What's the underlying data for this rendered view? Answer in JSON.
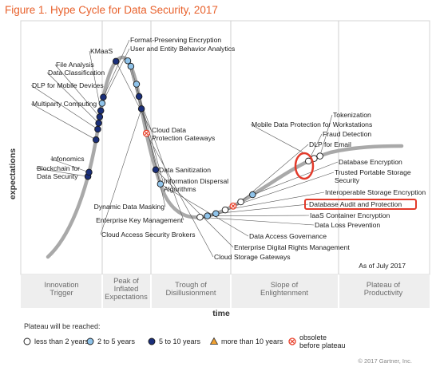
{
  "chart_data": {
    "type": "scatter",
    "title": "Figure 1. Hype Cycle for Data Security, 2017",
    "xlabel": "time",
    "ylabel": "expectations",
    "as_of": "As of July 2017",
    "copyright": "© 2017 Gartner, Inc.",
    "phases": [
      {
        "label": "Innovation Trigger"
      },
      {
        "label": "Peak of Inflated Expectations"
      },
      {
        "label": "Trough of Disillusionment"
      },
      {
        "label": "Slope of Enlightenment"
      },
      {
        "label": "Plateau of Productivity"
      }
    ],
    "legend": {
      "title": "Plateau will be reached:",
      "items": [
        {
          "key": "lt2",
          "label": "less than 2 years",
          "color": "#ffffff"
        },
        {
          "key": "2to5",
          "label": "2 to 5 years",
          "color": "#8fc3ea"
        },
        {
          "key": "5to10",
          "label": "5 to 10 years",
          "color": "#1a2f7a"
        },
        {
          "key": "gt10",
          "label": "more than 10 years",
          "color": "#f0a030"
        },
        {
          "key": "obsolete",
          "label": "obsolete before plateau",
          "color": "#e8402a"
        }
      ]
    },
    "technologies": [
      {
        "name": "Blockchain for Data Security",
        "category": "5to10",
        "t": 0.145
      },
      {
        "name": "Infonomics",
        "category": "5to10",
        "t": 0.152
      },
      {
        "name": "Multiparty Computing",
        "category": "5to10",
        "t": 0.205
      },
      {
        "name": "DLP for Mobile Devices",
        "category": "5to10",
        "t": 0.222
      },
      {
        "name": "Data Classification",
        "category": "5to10",
        "t": 0.232
      },
      {
        "name": "File Analysis",
        "category": "5to10",
        "t": 0.242
      },
      {
        "name": "KMaaS",
        "category": "5to10",
        "t": 0.252
      },
      {
        "name": "User and Entity Behavior Analytics",
        "category": "2to5",
        "t": 0.264
      },
      {
        "name": "Format-Preserving Encryption",
        "category": "5to10",
        "t": 0.274
      },
      {
        "name": "Cloud Data Protection Gateways",
        "category": "5to10",
        "t": 0.335
      },
      {
        "name": "Data Sanitization",
        "category": "2to5",
        "t": 0.358
      },
      {
        "name": "Information Dispersal Algorithms",
        "category": "2to5",
        "t": 0.368
      },
      {
        "name": "Dynamic Data Masking",
        "category": "2to5",
        "t": 0.398
      },
      {
        "name": "Enterprise Key Management",
        "category": "5to10",
        "t": 0.418
      },
      {
        "name": "Cloud Access Security Brokers",
        "category": "5to10",
        "t": 0.438
      },
      {
        "name": "Cloud Storage Gateways",
        "category": "obsolete",
        "t": 0.478
      },
      {
        "name": "Enterprise Digital Rights Management",
        "category": "5to10",
        "t": 0.538
      },
      {
        "name": "Data Access Governance",
        "category": "2to5",
        "t": 0.562
      },
      {
        "name": "Data Loss Prevention",
        "category": "lt2",
        "t": 0.652
      },
      {
        "name": "IaaS Container Encryption",
        "category": "2to5",
        "t": 0.664
      },
      {
        "name": "Database Audit and Protection",
        "category": "2to5",
        "t": 0.678,
        "highlight": true
      },
      {
        "name": "Interoperable Storage Encryption",
        "category": "lt2",
        "t": 0.694
      },
      {
        "name": "Trusted Portable Storage Security",
        "category": "obsolete",
        "t": 0.708
      },
      {
        "name": "DLP for Email",
        "category": "lt2",
        "t": 0.722
      },
      {
        "name": "Database Encryption",
        "category": "2to5",
        "t": 0.744
      },
      {
        "name": "Fraud Detection",
        "category": "lt2",
        "t": 0.848
      },
      {
        "name": "Mobile Data Protection for Workstations",
        "category": "lt2",
        "t": 0.858
      },
      {
        "name": "Tokenization",
        "category": "lt2",
        "t": 0.868
      }
    ]
  }
}
